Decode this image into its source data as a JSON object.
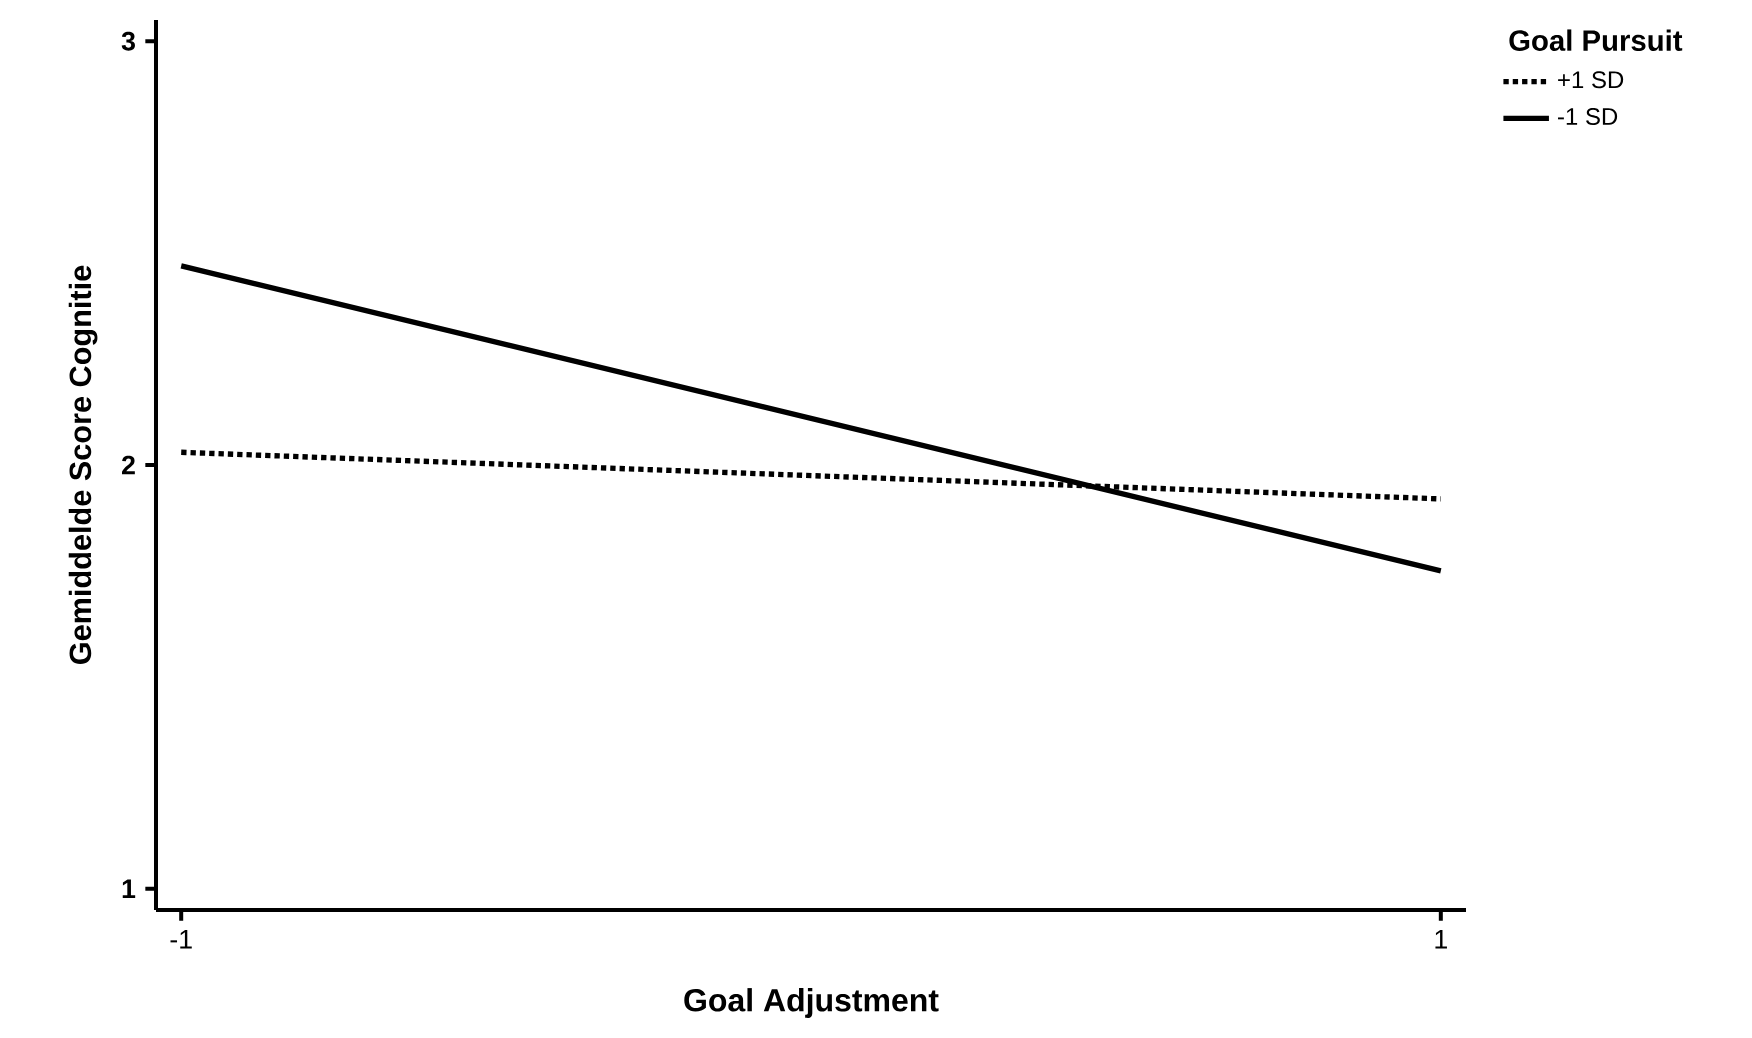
{
  "chart_data": {
    "type": "line",
    "xlabel": "Goal Adjustment",
    "ylabel": "Gemiddelde Score Cognitie",
    "legend_title": "Goal Pursuit",
    "x": [
      -1,
      1
    ],
    "series": [
      {
        "name": "+1 SD",
        "color": "#000000",
        "line_style": "dotted",
        "values": [
          2.03,
          1.92
        ]
      },
      {
        "name": "-1 SD",
        "color": "#000000",
        "line_style": "solid",
        "values": [
          2.47,
          1.75
        ]
      }
    ],
    "xlim": [
      -1.04,
      1.04
    ],
    "ylim": [
      0.95,
      3.05
    ],
    "xticks": [
      -1,
      1
    ],
    "yticks": [
      1,
      2,
      3
    ],
    "grid": false,
    "legend": "top right",
    "marker": "none"
  }
}
